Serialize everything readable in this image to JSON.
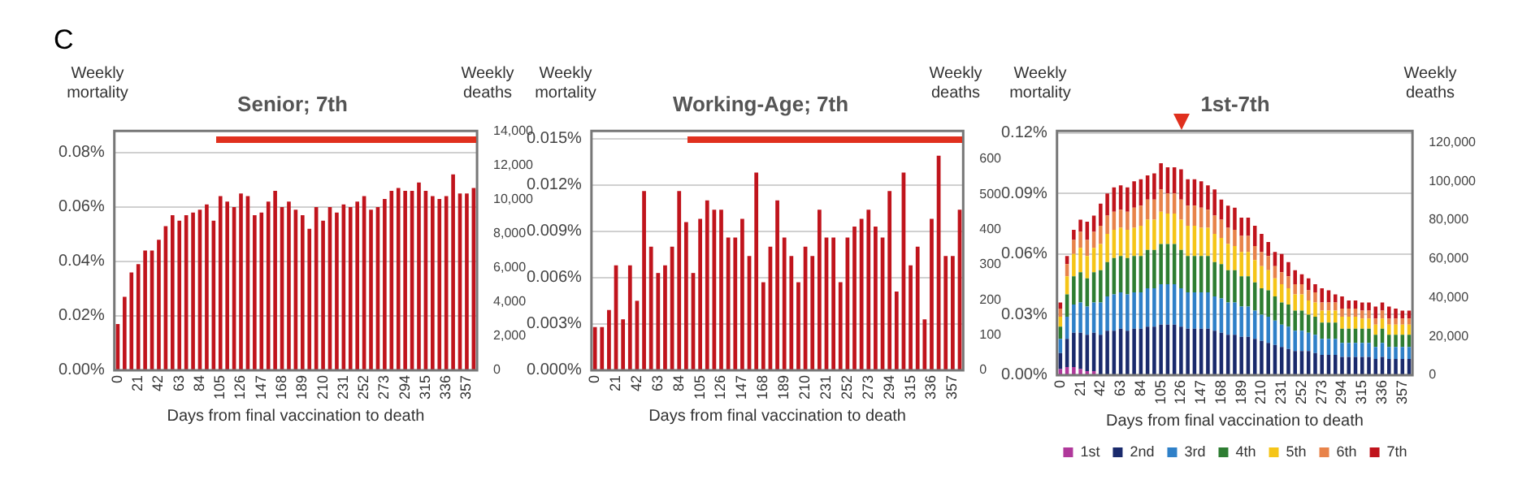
{
  "chart_data": [
    {
      "type": "bar",
      "title": "Senior; 7th",
      "annotations": [
        "C"
      ],
      "xlabel": "Days from final vaccination to death",
      "ylabel": "Weekly mortality",
      "y2label": "Weekly deaths",
      "categories": [
        "0",
        null,
        null,
        "21",
        null,
        null,
        "42",
        null,
        null,
        "63",
        null,
        null,
        "84",
        null,
        null,
        "105",
        null,
        null,
        "126",
        null,
        null,
        "147",
        null,
        null,
        "168",
        null,
        null,
        "189",
        null,
        null,
        "210",
        null,
        null,
        "231",
        null,
        null,
        "252",
        null,
        null,
        "273",
        null,
        null,
        "294",
        null,
        null,
        "315",
        null,
        null,
        "336",
        null,
        null,
        "357",
        null
      ],
      "color": "#c0141c",
      "values": [
        0.017,
        0.027,
        0.036,
        0.039,
        0.044,
        0.044,
        0.048,
        0.053,
        0.057,
        0.055,
        0.057,
        0.058,
        0.059,
        0.061,
        0.055,
        0.064,
        0.062,
        0.06,
        0.065,
        0.064,
        0.057,
        0.058,
        0.062,
        0.066,
        0.06,
        0.062,
        0.059,
        0.057,
        0.052,
        0.06,
        0.055,
        0.06,
        0.058,
        0.061,
        0.06,
        0.062,
        0.064,
        0.059,
        0.06,
        0.063,
        0.066,
        0.067,
        0.066,
        0.066,
        0.069,
        0.066,
        0.064,
        0.063,
        0.064,
        0.072,
        0.065,
        0.065,
        0.067
      ],
      "ylim": [
        0,
        0.088
      ],
      "yticks": [
        {
          "value": 0,
          "label": "0.00%"
        },
        {
          "value": 0.02,
          "label": "0.02%"
        },
        {
          "value": 0.04,
          "label": "0.04%"
        },
        {
          "value": 0.06,
          "label": "0.06%"
        },
        {
          "value": 0.08,
          "label": "0.08%"
        }
      ],
      "y2lim": [
        0,
        14000
      ],
      "y2ticks": [
        0,
        {
          "value": 2000,
          "label": "2,000"
        },
        {
          "value": 4000,
          "label": "4,000"
        },
        {
          "value": 6000,
          "label": "6,000"
        },
        {
          "value": 8000,
          "label": "8,000"
        },
        {
          "value": 10000,
          "label": "10,000"
        },
        {
          "value": 12000,
          "label": "12,000"
        },
        {
          "value": 14000,
          "label": "14,000"
        }
      ],
      "grid": "y"
    },
    {
      "type": "bar",
      "title": "Working-Age; 7th",
      "xlabel": "Days from final vaccination to death",
      "ylabel": "Weekly mortality",
      "y2label": "Weekly deaths",
      "categories": [
        "0",
        null,
        null,
        "21",
        null,
        null,
        "42",
        null,
        null,
        "63",
        null,
        null,
        "84",
        null,
        null,
        "105",
        null,
        null,
        "126",
        null,
        null,
        "147",
        null,
        null,
        "168",
        null,
        null,
        "189",
        null,
        null,
        "210",
        null,
        null,
        "231",
        null,
        null,
        "252",
        null,
        null,
        "273",
        null,
        null,
        "294",
        null,
        null,
        "315",
        null,
        null,
        "336",
        null,
        null,
        "357",
        null
      ],
      "color": "#c0141c",
      "values": [
        0.0028,
        0.0028,
        0.0039,
        0.0068,
        0.0033,
        0.0068,
        0.0045,
        0.0116,
        0.008,
        0.0063,
        0.0068,
        0.008,
        0.0116,
        0.0096,
        0.0063,
        0.0098,
        0.011,
        0.0104,
        0.0104,
        0.0086,
        0.0086,
        0.0098,
        0.0074,
        0.0128,
        0.0057,
        0.008,
        0.011,
        0.0086,
        0.0074,
        0.0057,
        0.008,
        0.0074,
        0.0104,
        0.0086,
        0.0086,
        0.0057,
        0.0086,
        0.0093,
        0.0098,
        0.0104,
        0.0093,
        0.0086,
        0.0116,
        0.0051,
        0.0128,
        0.0068,
        0.008,
        0.0033,
        0.0098,
        0.0139,
        0.0074,
        0.0074,
        0.0104
      ],
      "ylim": [
        0,
        0.0155
      ],
      "yticks": [
        {
          "value": 0,
          "label": "0.000%"
        },
        {
          "value": 0.003,
          "label": "0.003%"
        },
        {
          "value": 0.006,
          "label": "0.006%"
        },
        {
          "value": 0.009,
          "label": "0.009%"
        },
        {
          "value": 0.012,
          "label": "0.012%"
        },
        {
          "value": 0.015,
          "label": "0.015%"
        }
      ],
      "y2lim": [
        0,
        680
      ],
      "y2ticks": [
        0,
        100,
        200,
        300,
        400,
        500,
        600
      ],
      "grid": "y"
    },
    {
      "type": "bar",
      "title": "1st-7th",
      "xlabel": "Days from final vaccination to death",
      "ylabel": "Weekly mortality",
      "y2label": "Weekly deaths",
      "stacked": true,
      "legend": "bottom",
      "categories": [
        "0",
        null,
        null,
        "21",
        null,
        null,
        "42",
        null,
        null,
        "63",
        null,
        null,
        "84",
        null,
        null,
        "105",
        null,
        null,
        "126",
        null,
        null,
        "147",
        null,
        null,
        "168",
        null,
        null,
        "189",
        null,
        null,
        "210",
        null,
        null,
        "231",
        null,
        null,
        "252",
        null,
        null,
        "273",
        null,
        null,
        "294",
        null,
        null,
        "315",
        null,
        null,
        "336",
        null,
        null,
        "357",
        null
      ],
      "series": [
        {
          "name": "1st",
          "color": "#b0399b",
          "values": [
            0.003,
            0.004,
            0.004,
            0.003,
            0.002,
            0.002,
            0,
            0,
            0,
            0,
            0,
            0,
            0,
            0,
            0,
            0,
            0,
            0,
            0,
            0,
            0,
            0,
            0,
            0,
            0,
            0,
            0,
            0,
            0,
            0,
            0,
            0,
            0,
            0,
            0,
            0,
            0,
            0,
            0,
            0,
            0,
            0,
            0,
            0,
            0,
            0,
            0,
            0,
            0,
            0,
            0,
            0,
            0
          ]
        },
        {
          "name": "2nd",
          "color": "#1a2a6c",
          "values": [
            0.008,
            0.014,
            0.017,
            0.018,
            0.018,
            0.019,
            0.02,
            0.022,
            0.022,
            0.023,
            0.022,
            0.023,
            0.023,
            0.024,
            0.024,
            0.025,
            0.025,
            0.025,
            0.024,
            0.023,
            0.023,
            0.023,
            0.023,
            0.022,
            0.021,
            0.02,
            0.02,
            0.019,
            0.019,
            0.018,
            0.017,
            0.016,
            0.015,
            0.014,
            0.013,
            0.012,
            0.012,
            0.012,
            0.011,
            0.01,
            0.01,
            0.01,
            0.009,
            0.009,
            0.009,
            0.009,
            0.009,
            0.008,
            0.009,
            0.008,
            0.008,
            0.008,
            0.008
          ]
        },
        {
          "name": "3rd",
          "color": "#2f80c8",
          "values": [
            0.007,
            0.011,
            0.014,
            0.015,
            0.014,
            0.015,
            0.016,
            0.017,
            0.018,
            0.018,
            0.018,
            0.018,
            0.018,
            0.019,
            0.019,
            0.02,
            0.02,
            0.02,
            0.019,
            0.018,
            0.018,
            0.018,
            0.018,
            0.017,
            0.017,
            0.016,
            0.016,
            0.015,
            0.015,
            0.014,
            0.013,
            0.013,
            0.012,
            0.011,
            0.011,
            0.01,
            0.01,
            0.009,
            0.009,
            0.008,
            0.008,
            0.008,
            0.007,
            0.007,
            0.007,
            0.007,
            0.007,
            0.006,
            0.007,
            0.006,
            0.006,
            0.006,
            0.006
          ]
        },
        {
          "name": "4th",
          "color": "#2e7d32",
          "values": [
            0.006,
            0.011,
            0.014,
            0.015,
            0.014,
            0.015,
            0.016,
            0.017,
            0.018,
            0.018,
            0.018,
            0.018,
            0.018,
            0.019,
            0.019,
            0.02,
            0.02,
            0.02,
            0.019,
            0.018,
            0.018,
            0.018,
            0.018,
            0.017,
            0.017,
            0.016,
            0.016,
            0.015,
            0.015,
            0.014,
            0.013,
            0.013,
            0.012,
            0.011,
            0.011,
            0.01,
            0.01,
            0.009,
            0.009,
            0.008,
            0.008,
            0.008,
            0.007,
            0.007,
            0.007,
            0.007,
            0.007,
            0.006,
            0.007,
            0.006,
            0.006,
            0.006,
            0.006
          ]
        },
        {
          "name": "5th",
          "color": "#f5c518",
          "values": [
            0.005,
            0.009,
            0.011,
            0.012,
            0.011,
            0.012,
            0.013,
            0.014,
            0.014,
            0.014,
            0.014,
            0.014,
            0.015,
            0.015,
            0.015,
            0.016,
            0.015,
            0.015,
            0.015,
            0.015,
            0.015,
            0.014,
            0.014,
            0.014,
            0.013,
            0.013,
            0.012,
            0.012,
            0.012,
            0.011,
            0.011,
            0.01,
            0.009,
            0.009,
            0.008,
            0.008,
            0.008,
            0.007,
            0.007,
            0.006,
            0.006,
            0.006,
            0.006,
            0.006,
            0.006,
            0.005,
            0.005,
            0.005,
            0.005,
            0.005,
            0.005,
            0.005,
            0.005
          ]
        },
        {
          "name": "6th",
          "color": "#e8834a",
          "values": [
            0.004,
            0.006,
            0.007,
            0.008,
            0.008,
            0.008,
            0.009,
            0.009,
            0.009,
            0.009,
            0.009,
            0.01,
            0.01,
            0.01,
            0.01,
            0.011,
            0.01,
            0.01,
            0.01,
            0.01,
            0.01,
            0.01,
            0.009,
            0.009,
            0.009,
            0.008,
            0.008,
            0.008,
            0.008,
            0.007,
            0.007,
            0.007,
            0.006,
            0.006,
            0.006,
            0.005,
            0.005,
            0.005,
            0.005,
            0.004,
            0.004,
            0.004,
            0.004,
            0.004,
            0.004,
            0.004,
            0.004,
            0.003,
            0.004,
            0.003,
            0.003,
            0.003,
            0.003
          ]
        },
        {
          "name": "7th",
          "color": "#c0141c",
          "values": [
            0.003,
            0.004,
            0.005,
            0.006,
            0.009,
            0.008,
            0.011,
            0.011,
            0.012,
            0.012,
            0.012,
            0.013,
            0.013,
            0.012,
            0.013,
            0.013,
            0.013,
            0.013,
            0.015,
            0.013,
            0.013,
            0.013,
            0.012,
            0.013,
            0.01,
            0.011,
            0.011,
            0.009,
            0.009,
            0.01,
            0.009,
            0.007,
            0.007,
            0.009,
            0.007,
            0.007,
            0.005,
            0.006,
            0.004,
            0.007,
            0.006,
            0.004,
            0.006,
            0.004,
            0.004,
            0.004,
            0.004,
            0.006,
            0.004,
            0.006,
            0.005,
            0.004,
            0.004
          ]
        }
      ],
      "ylim": [
        0,
        0.121
      ],
      "yticks": [
        {
          "value": 0,
          "label": "0.00%"
        },
        {
          "value": 0.03,
          "label": "0.03%"
        },
        {
          "value": 0.06,
          "label": "0.06%"
        },
        {
          "value": 0.09,
          "label": "0.09%"
        },
        {
          "value": 0.12,
          "label": "0.12%"
        }
      ],
      "y2lim": [
        0,
        126000
      ],
      "y2ticks": [
        0,
        {
          "value": 20000,
          "label": "20,000"
        },
        {
          "value": 40000,
          "label": "40,000"
        },
        {
          "value": 60000,
          "label": "60,000"
        },
        {
          "value": 80000,
          "label": "80,000"
        },
        {
          "value": 100000,
          "label": "100,000"
        },
        {
          "value": 120000,
          "label": "120,000"
        }
      ],
      "grid": "y"
    }
  ]
}
